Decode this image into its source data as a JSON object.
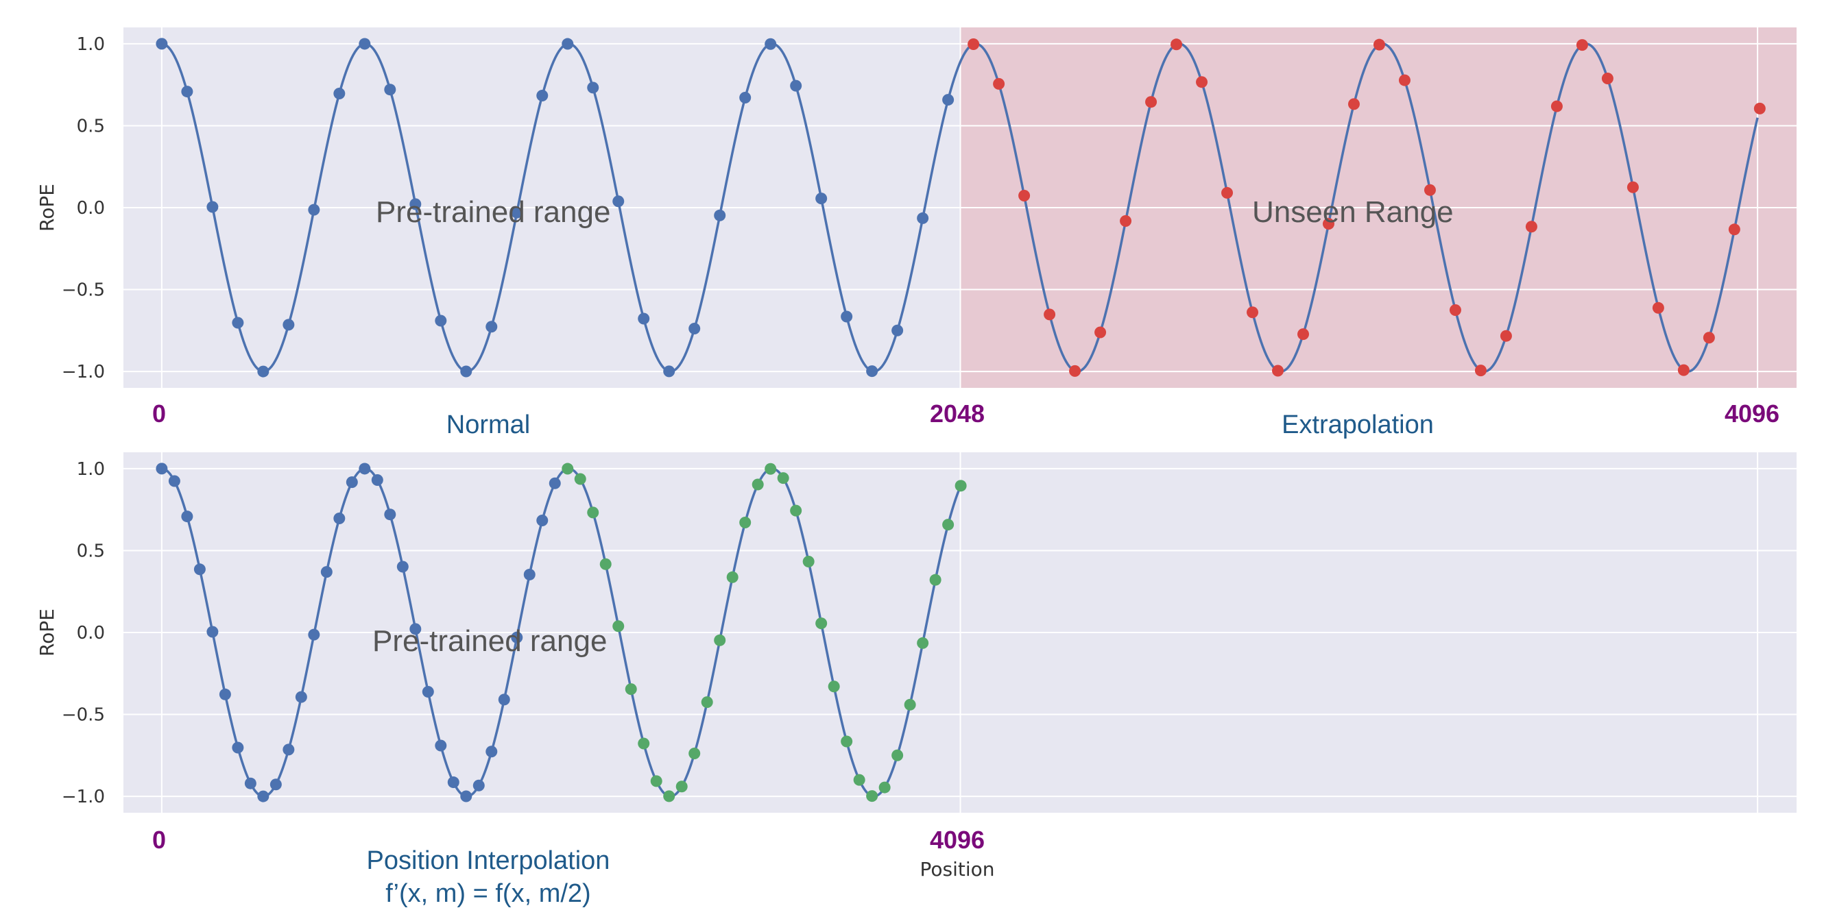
{
  "chart_data": [
    {
      "type": "line",
      "ylabel": "RoPE",
      "xlim": [
        -55,
        2346
      ],
      "ylim": [
        -1.1,
        1.1
      ],
      "yticks": [
        1.0,
        0.5,
        0.0,
        -0.5,
        -1.0
      ],
      "ytick_labels": [
        "1.0",
        "0.5",
        "0.0",
        "−0.5",
        "−1.0"
      ],
      "grid": true,
      "position_labels": [
        "0",
        "2048",
        "4096"
      ],
      "captions": [
        "Normal",
        "Extrapolation"
      ],
      "region_labels": [
        "Pre-trained range",
        "Unseen Range"
      ],
      "shaded_region": {
        "x": [
          1146,
          2346
        ],
        "color": "#e8b0b8"
      },
      "curve": {
        "x_start": 0,
        "x_end": 2290,
        "amplitude": 1.0,
        "period": 292
      },
      "series": [
        {
          "color": "#4c72b0",
          "x_start": 0,
          "x_step": 36.4,
          "count": 32
        },
        {
          "color": "#d9433f",
          "x_start": 1164.8,
          "x_step": 36.4,
          "count": 32
        }
      ]
    },
    {
      "type": "line",
      "ylabel": "RoPE",
      "xlabel": "Position",
      "xlim": [
        -55,
        2346
      ],
      "ylim": [
        -1.1,
        1.1
      ],
      "yticks": [
        1.0,
        0.5,
        0.0,
        -0.5,
        -1.0
      ],
      "ytick_labels": [
        "1.0",
        "0.5",
        "0.0",
        "−0.5",
        "−1.0"
      ],
      "grid": true,
      "position_labels": [
        "0",
        "4096"
      ],
      "captions": [
        "Position Interpolation",
        "f’(x, m) = f(x, m/2)"
      ],
      "region_labels": [
        "Pre-trained range"
      ],
      "curve": {
        "x_start": 0,
        "x_end": 1146,
        "amplitude": 1.0,
        "period": 292
      },
      "series": [
        {
          "color": "#4c72b0",
          "x_start": 0,
          "x_step": 18.2,
          "count": 32
        },
        {
          "color": "#55a868",
          "x_start": 582.4,
          "x_step": 18.2,
          "count": 32
        }
      ]
    }
  ]
}
